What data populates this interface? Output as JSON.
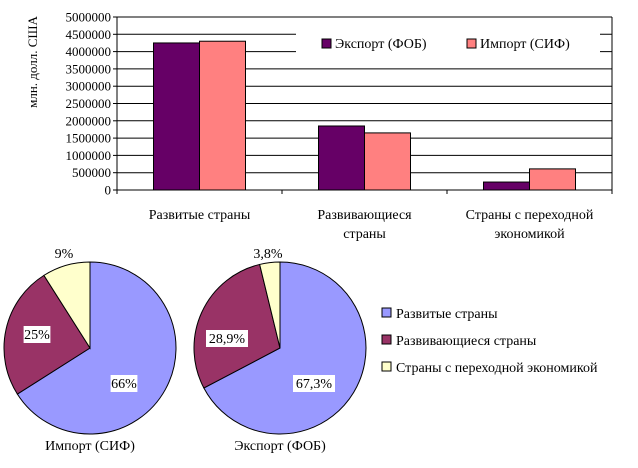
{
  "chart_data": [
    {
      "type": "bar",
      "ylabel": "млн. долл. США",
      "ylim": [
        0,
        5000000
      ],
      "yticks": [
        0,
        500000,
        1000000,
        1500000,
        2000000,
        2500000,
        3000000,
        3500000,
        4000000,
        4500000,
        5000000
      ],
      "grid": true,
      "legend": "top-right",
      "categories": [
        [
          "Развитые страны"
        ],
        [
          "Развивающиеся",
          "страны"
        ],
        [
          "Страны с переходной",
          "экономикой"
        ]
      ],
      "series": [
        {
          "name": "Экспорт (ФОБ)",
          "color": "#660066",
          "values": [
            4250000,
            1850000,
            230000
          ]
        },
        {
          "name": "Импорт (СИФ)",
          "color": "#ff8080",
          "values": [
            4300000,
            1650000,
            610000
          ]
        }
      ]
    },
    {
      "type": "pie",
      "title": "Импорт (СИФ)",
      "slices": [
        {
          "category": "Развитые страны",
          "label": "66%",
          "value": 66,
          "color": "#9999ff"
        },
        {
          "category": "Развивающиеся страны",
          "label": "25%",
          "value": 25,
          "color": "#993366"
        },
        {
          "category": "Страны с переходной экономикой",
          "label": "9%",
          "value": 9,
          "color": "#ffffcc"
        }
      ]
    },
    {
      "type": "pie",
      "title": "Экспорт (ФОБ)",
      "slices": [
        {
          "category": "Развитые страны",
          "label": "67,3%",
          "value": 67.3,
          "color": "#9999ff"
        },
        {
          "category": "Развивающиеся страны",
          "label": "28,9%",
          "value": 28.9,
          "color": "#993366"
        },
        {
          "category": "Страны с переходной экономикой",
          "label": "3,8%",
          "value": 3.8,
          "color": "#ffffcc"
        }
      ]
    }
  ],
  "pie_legend": [
    {
      "label": "Развитые страны",
      "color": "#9999ff"
    },
    {
      "label": "Развивающиеся страны",
      "color": "#993366"
    },
    {
      "label": "Страны с переходной экономикой",
      "color": "#ffffcc"
    }
  ]
}
